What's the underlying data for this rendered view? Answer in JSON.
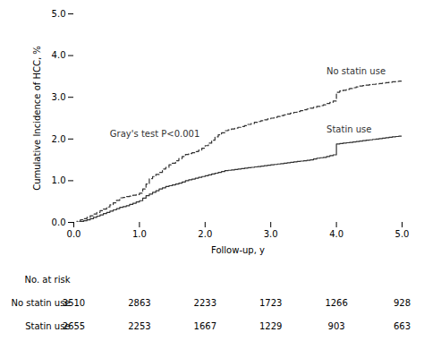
{
  "chart_data": {
    "type": "step",
    "xlabel": "Follow-up, y",
    "ylabel": "Cumulative Incidence of HCC, %",
    "xlim": [
      0,
      5
    ],
    "ylim": [
      0,
      5
    ],
    "xticks": [
      0,
      1,
      2,
      3,
      4,
      5
    ],
    "yticks": [
      0,
      1,
      2,
      3,
      4,
      5
    ],
    "color": "#333333",
    "annotations": [
      {
        "text": "Gray's test P<0.001",
        "x": 0.55,
        "y": 2.05
      }
    ],
    "x": [
      0.0,
      0.05,
      0.1,
      0.15,
      0.2,
      0.25,
      0.3,
      0.35,
      0.4,
      0.45,
      0.5,
      0.55,
      0.6,
      0.65,
      0.7,
      0.75,
      0.8,
      0.85,
      0.9,
      0.95,
      1.0,
      1.05,
      1.1,
      1.15,
      1.2,
      1.25,
      1.3,
      1.35,
      1.4,
      1.45,
      1.5,
      1.55,
      1.6,
      1.65,
      1.7,
      1.75,
      1.8,
      1.85,
      1.9,
      1.95,
      2.0,
      2.05,
      2.1,
      2.15,
      2.2,
      2.25,
      2.3,
      2.35,
      2.4,
      2.45,
      2.5,
      2.55,
      2.6,
      2.65,
      2.7,
      2.75,
      2.8,
      2.85,
      2.9,
      2.95,
      3.0,
      3.05,
      3.1,
      3.15,
      3.2,
      3.25,
      3.3,
      3.35,
      3.4,
      3.45,
      3.5,
      3.55,
      3.6,
      3.65,
      3.7,
      3.75,
      3.8,
      3.85,
      3.9,
      3.95,
      4.0,
      4.05,
      4.1,
      4.15,
      4.2,
      4.25,
      4.3,
      4.35,
      4.4,
      4.45,
      4.5,
      4.55,
      4.6,
      4.65,
      4.7,
      4.75,
      4.8,
      4.85,
      4.9,
      4.95,
      5.0
    ],
    "series": [
      {
        "name": "No statin use",
        "line_style": "dashed",
        "label_xy": [
          3.85,
          3.55
        ],
        "values": [
          0.0,
          0.03,
          0.06,
          0.09,
          0.12,
          0.16,
          0.2,
          0.24,
          0.28,
          0.32,
          0.37,
          0.42,
          0.47,
          0.53,
          0.59,
          0.6,
          0.62,
          0.63,
          0.65,
          0.67,
          0.7,
          0.8,
          0.92,
          1.05,
          1.1,
          1.15,
          1.2,
          1.28,
          1.32,
          1.38,
          1.42,
          1.48,
          1.53,
          1.58,
          1.63,
          1.65,
          1.67,
          1.7,
          1.73,
          1.78,
          1.84,
          1.9,
          1.97,
          2.05,
          2.1,
          2.15,
          2.2,
          2.22,
          2.24,
          2.26,
          2.28,
          2.3,
          2.32,
          2.35,
          2.37,
          2.4,
          2.42,
          2.44,
          2.46,
          2.48,
          2.5,
          2.52,
          2.54,
          2.56,
          2.58,
          2.6,
          2.62,
          2.64,
          2.66,
          2.68,
          2.7,
          2.72,
          2.74,
          2.76,
          2.78,
          2.8,
          2.82,
          2.85,
          2.88,
          2.91,
          3.12,
          3.15,
          3.17,
          3.19,
          3.21,
          3.23,
          3.25,
          3.27,
          3.28,
          3.29,
          3.3,
          3.31,
          3.32,
          3.33,
          3.34,
          3.35,
          3.36,
          3.37,
          3.38,
          3.39,
          3.4
        ],
        "at_risk": [
          3510,
          2863,
          2233,
          1723,
          1266,
          928
        ]
      },
      {
        "name": "Statin use",
        "line_style": "solid",
        "label_xy": [
          3.85,
          2.15
        ],
        "values": [
          0.0,
          0.01,
          0.02,
          0.04,
          0.06,
          0.09,
          0.12,
          0.15,
          0.18,
          0.21,
          0.24,
          0.27,
          0.3,
          0.33,
          0.36,
          0.38,
          0.4,
          0.43,
          0.46,
          0.49,
          0.52,
          0.58,
          0.64,
          0.68,
          0.72,
          0.76,
          0.8,
          0.83,
          0.86,
          0.88,
          0.9,
          0.92,
          0.94,
          0.97,
          1.0,
          1.02,
          1.04,
          1.06,
          1.08,
          1.1,
          1.12,
          1.14,
          1.16,
          1.18,
          1.2,
          1.22,
          1.24,
          1.25,
          1.26,
          1.27,
          1.28,
          1.29,
          1.3,
          1.31,
          1.32,
          1.33,
          1.34,
          1.35,
          1.36,
          1.37,
          1.38,
          1.39,
          1.4,
          1.41,
          1.42,
          1.43,
          1.44,
          1.45,
          1.46,
          1.47,
          1.48,
          1.49,
          1.5,
          1.52,
          1.54,
          1.55,
          1.56,
          1.58,
          1.6,
          1.62,
          1.88,
          1.89,
          1.9,
          1.91,
          1.92,
          1.93,
          1.94,
          1.95,
          1.96,
          1.97,
          1.98,
          1.99,
          2.0,
          2.01,
          2.02,
          2.03,
          2.04,
          2.05,
          2.06,
          2.07,
          2.08
        ],
        "at_risk": [
          2655,
          2253,
          1667,
          1229,
          903,
          663
        ]
      }
    ],
    "risk_table_label": "No. at risk",
    "risk_times": [
      0,
      1,
      2,
      3,
      4,
      5
    ]
  }
}
